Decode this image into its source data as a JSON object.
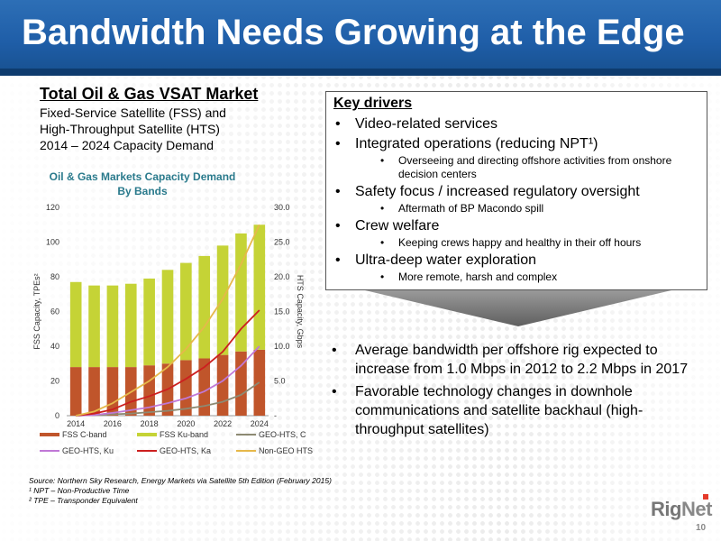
{
  "slide_title": "Bandwidth Needs Growing at the Edge",
  "market": {
    "title": "Total Oil & Gas VSAT Market",
    "line1": "Fixed-Service Satellite (FSS) and",
    "line2": "High-Throughput Satellite (HTS)",
    "line3": "2014 – 2024 Capacity Demand"
  },
  "key_drivers": {
    "title": "Key drivers",
    "items": [
      {
        "text": "Video-related services",
        "subs": []
      },
      {
        "text": "Integrated operations (reducing NPT¹)",
        "subs": [
          "Overseeing and directing offshore activities from onshore decision centers"
        ]
      },
      {
        "text": "Safety focus / increased regulatory oversight",
        "subs": [
          "Aftermath of BP Macondo spill"
        ]
      },
      {
        "text": "Crew welfare",
        "subs": [
          "Keeping crews happy and healthy in their off hours"
        ]
      },
      {
        "text": "Ultra-deep water exploration",
        "subs": [
          "More remote, harsh and complex"
        ]
      }
    ]
  },
  "bullets": [
    "Average bandwidth per offshore rig expected to increase from 1.0 Mbps in 2012 to 2.2 Mbps in 2017",
    "Favorable technology changes in downhole communications and satellite backhaul (high-throughput satellites)"
  ],
  "source": {
    "line1": "Source: Northern Sky Research, Energy Markets via Satellite 5th Edition (February 2015)",
    "line2": "¹ NPT – Non-Productive Time",
    "line3": "² TPE – Transponder Equivalent"
  },
  "logo": {
    "rig": "Rig",
    "net": "Net"
  },
  "page_number": "10",
  "colors": {
    "fss_c": "#c0552b",
    "fss_ku": "#c5d336",
    "geo_c": "#8d8a73",
    "geo_ku": "#c078d6",
    "geo_ka": "#cc1f1f",
    "non_geo": "#e6b84a",
    "title_blue": "#1f5ea8",
    "chart_title": "#2a7a8c"
  },
  "chart_data": {
    "type": "bar",
    "title": "Oil & Gas Markets Capacity Demand",
    "subtitle": "By Bands",
    "ylabel": "FSS Capacity, TPEs²",
    "y2label": "HTS Capacity, Gbps",
    "ylim": [
      0,
      120
    ],
    "y2lim": [
      0,
      30
    ],
    "y_ticks": [
      "0",
      "20",
      "40",
      "60",
      "80",
      "100",
      "120"
    ],
    "y2_ticks": [
      "-",
      "5.0",
      "10.0",
      "15.0",
      "20.0",
      "25.0",
      "30.0"
    ],
    "x_ticks": [
      "2014",
      "2016",
      "2018",
      "2020",
      "2022",
      "2024"
    ],
    "categories": [
      "2014",
      "2015",
      "2016",
      "2017",
      "2018",
      "2019",
      "2020",
      "2021",
      "2022",
      "2023",
      "2024"
    ],
    "stacked_series": [
      {
        "name": "FSS C-band",
        "color": "#c0552b",
        "values": [
          28,
          28,
          28,
          28,
          29,
          30,
          32,
          33,
          35,
          37,
          38
        ]
      },
      {
        "name": "FSS Ku-band",
        "color": "#c5d336",
        "values": [
          49,
          47,
          47,
          48,
          50,
          54,
          56,
          59,
          63,
          68,
          72
        ]
      }
    ],
    "line_series": [
      {
        "name": "GEO-HTS, C",
        "color": "#8d8a73",
        "values": [
          0.0,
          0.1,
          0.2,
          0.3,
          0.5,
          0.7,
          1.0,
          1.4,
          2.0,
          3.0,
          4.8
        ]
      },
      {
        "name": "GEO-HTS, Ku",
        "color": "#c078d6",
        "values": [
          0.0,
          0.1,
          0.4,
          0.8,
          1.2,
          1.8,
          2.5,
          3.5,
          5.0,
          7.2,
          10.0
        ]
      },
      {
        "name": "GEO-HTS, Ka",
        "color": "#cc1f1f",
        "values": [
          0.0,
          0.3,
          0.9,
          2.0,
          2.8,
          3.8,
          5.3,
          7.0,
          9.2,
          12.5,
          15.2
        ]
      },
      {
        "name": "Non-GEO HTS",
        "color": "#e6b84a",
        "values": [
          0.0,
          0.6,
          1.8,
          3.4,
          5.0,
          7.0,
          9.6,
          12.8,
          16.8,
          21.8,
          27.5
        ]
      }
    ],
    "legend": [
      "FSS C-band",
      "FSS Ku-band",
      "GEO-HTS, C",
      "GEO-HTS, Ku",
      "GEO-HTS, Ka",
      "Non-GEO HTS"
    ],
    "legend_position": "bottom"
  }
}
